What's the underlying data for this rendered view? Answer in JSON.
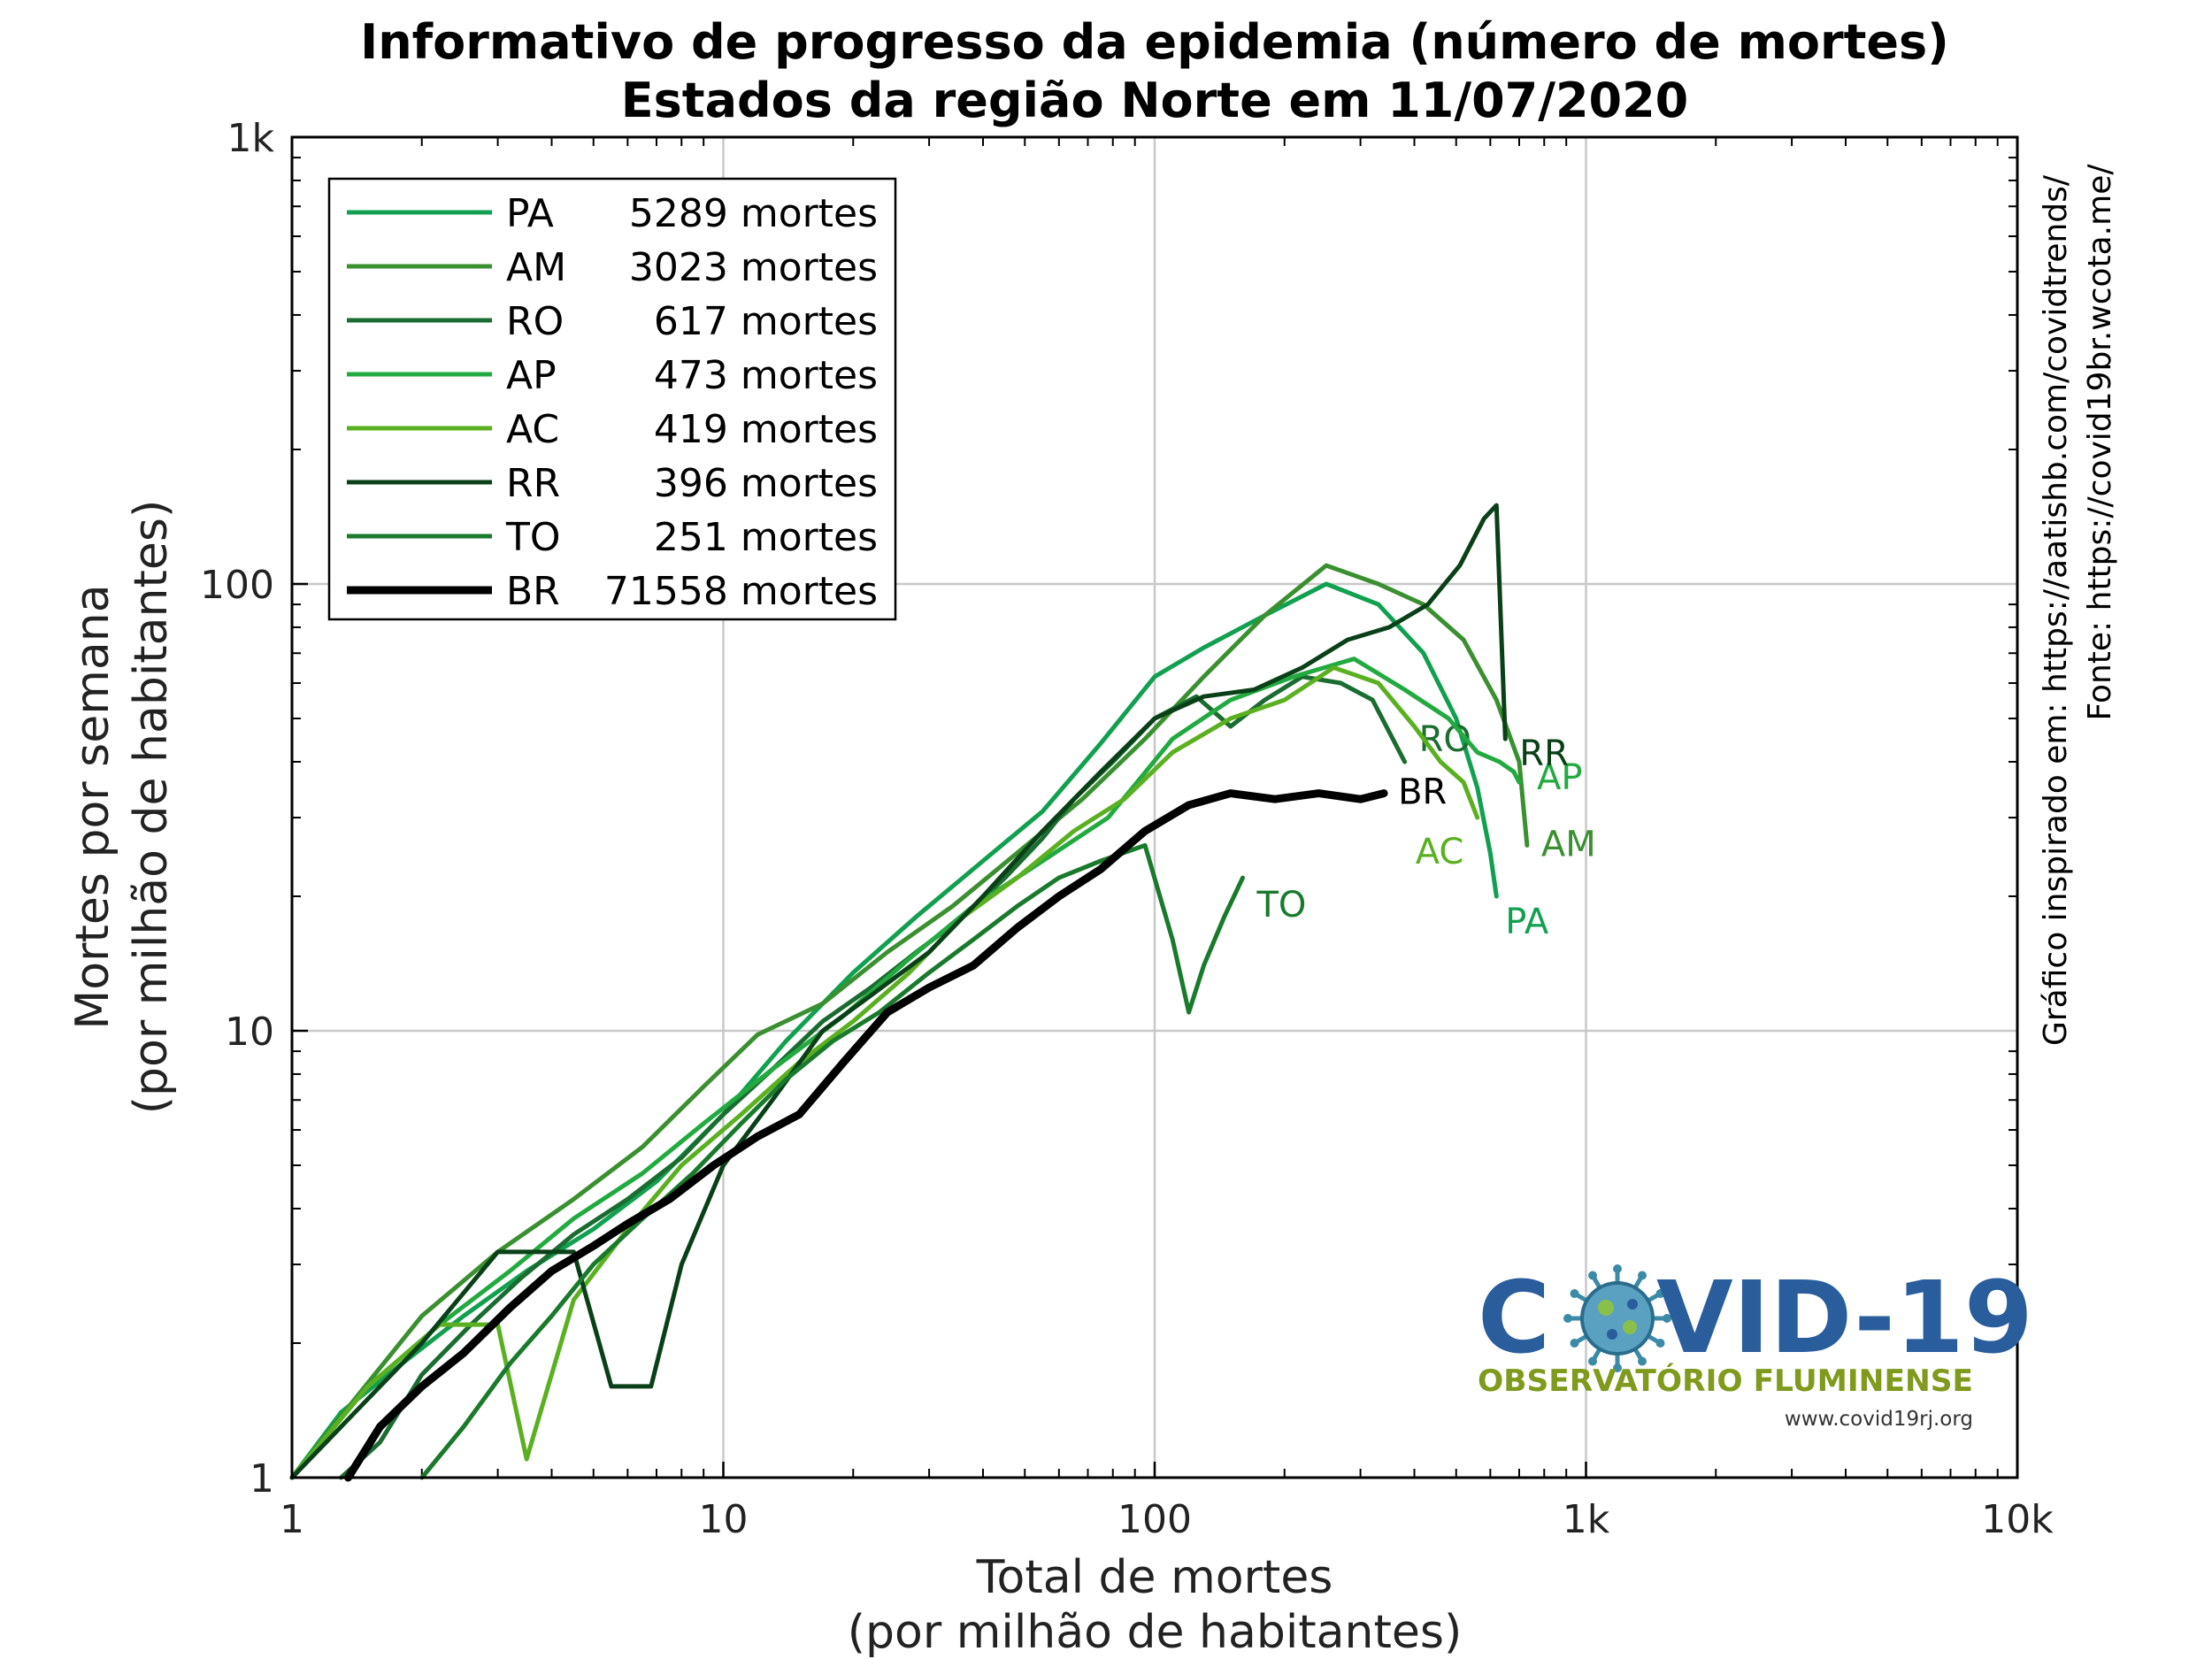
{
  "chart_data": {
    "type": "line",
    "title": "Informativo de progresso da epidemia (número de mortes)",
    "subtitle": "Estados da região Norte em 11/07/2020",
    "xlabel": "Total de mortes",
    "xlabel2": "(por milhão de habitantes)",
    "ylabel": "Mortes por semana",
    "ylabel2": "(por milhão de habitantes)",
    "xscale": "log",
    "yscale": "log",
    "xlim": [
      1,
      10000
    ],
    "ylim": [
      1,
      1000
    ],
    "x_ticks": [
      {
        "v": 1,
        "label": "1"
      },
      {
        "v": 10,
        "label": "10"
      },
      {
        "v": 100,
        "label": "100"
      },
      {
        "v": 1000,
        "label": "1k"
      },
      {
        "v": 10000,
        "label": "10k"
      }
    ],
    "y_ticks": [
      {
        "v": 1,
        "label": "1"
      },
      {
        "v": 10,
        "label": "10"
      },
      {
        "v": 100,
        "label": "100"
      },
      {
        "v": 1000,
        "label": "1k"
      }
    ],
    "grid": true,
    "legend_position": "top-left",
    "series": [
      {
        "name": "PA",
        "deaths_label": "5289 mortes",
        "color": "#11a050",
        "end_label": "PA",
        "x": [
          1.0,
          1.3,
          1.8,
          2.5,
          3.5,
          5,
          7,
          10,
          14,
          20,
          28,
          40,
          55,
          75,
          100,
          130,
          180,
          250,
          330,
          420,
          500,
          560,
          600,
          620
        ],
        "y": [
          1.0,
          1.4,
          1.8,
          2.3,
          2.9,
          3.6,
          4.6,
          6.5,
          9.5,
          13.5,
          18,
          24,
          31,
          44,
          62,
          72,
          85,
          100,
          90,
          70,
          50,
          35,
          25,
          20
        ]
      },
      {
        "name": "AM",
        "deaths_label": "3023 mortes",
        "color": "#3a9030",
        "end_label": "AM",
        "x": [
          1.0,
          1.4,
          2,
          3,
          4.5,
          6.5,
          9,
          12,
          17,
          24,
          34,
          48,
          68,
          95,
          130,
          180,
          250,
          330,
          420,
          520,
          620,
          700,
          730
        ],
        "y": [
          1.0,
          1.5,
          2.3,
          3.2,
          4.2,
          5.5,
          7.5,
          9.8,
          11.5,
          15,
          19,
          25,
          33,
          45,
          62,
          85,
          110,
          100,
          90,
          75,
          55,
          40,
          26
        ]
      },
      {
        "name": "RO",
        "deaths_label": "617 mortes",
        "color": "#1a6c30",
        "end_label": "RO",
        "x": [
          1.3,
          1.6,
          2,
          2.6,
          3.4,
          4.5,
          6,
          8,
          10,
          13,
          17,
          22,
          28,
          36,
          45,
          55,
          65,
          80,
          100,
          125,
          150,
          180,
          220,
          270,
          320,
          380
        ],
        "y": [
          1.0,
          1.2,
          1.7,
          2.2,
          2.8,
          3.5,
          4.2,
          5.2,
          6.5,
          8.2,
          10.5,
          12.5,
          15,
          18,
          22,
          27,
          33,
          40,
          50,
          56,
          48,
          55,
          62,
          60,
          55,
          40
        ]
      },
      {
        "name": "AP",
        "deaths_label": "473 mortes",
        "color": "#22aa40",
        "end_label": "AP",
        "x": [
          1.0,
          1.5,
          2.2,
          3.2,
          4.5,
          6.5,
          9,
          13,
          19,
          27,
          38,
          55,
          78,
          110,
          150,
          210,
          290,
          380,
          480,
          560,
          630,
          680,
          700
        ],
        "y": [
          1.0,
          1.6,
          2.2,
          2.9,
          3.8,
          4.8,
          6.2,
          8.2,
          10.8,
          14.5,
          19,
          24,
          30,
          45,
          55,
          62,
          68,
          58,
          50,
          42,
          40,
          38,
          36
        ]
      },
      {
        "name": "AC",
        "deaths_label": "419 mortes",
        "color": "#5ab020",
        "end_label": "AC",
        "x": [
          1.0,
          1.5,
          2.2,
          3,
          3.5,
          4.5,
          6,
          8,
          11,
          15,
          20,
          27,
          36,
          48,
          65,
          85,
          110,
          150,
          200,
          260,
          330,
          400,
          460,
          520,
          560
        ],
        "y": [
          1.0,
          1.6,
          2.2,
          2.2,
          1.1,
          2.5,
          3.6,
          5.0,
          6.5,
          8.5,
          10.5,
          13.5,
          18,
          22,
          28,
          33,
          42,
          50,
          55,
          65,
          60,
          48,
          40,
          36,
          30
        ]
      },
      {
        "name": "RR",
        "deaths_label": "396 mortes",
        "color": "#0a4018",
        "end_label": "RR",
        "x": [
          1.0,
          1.4,
          2,
          3,
          4.5,
          5.5,
          6.8,
          8,
          10,
          13,
          17,
          22,
          30,
          40,
          55,
          75,
          100,
          130,
          170,
          220,
          280,
          350,
          430,
          510,
          580,
          620,
          650
        ],
        "y": [
          1.0,
          1.4,
          2.0,
          3.2,
          3.2,
          1.6,
          1.6,
          3.0,
          5.0,
          7.0,
          10.0,
          12.0,
          15.0,
          20.0,
          28,
          38,
          50,
          56,
          58,
          65,
          75,
          80,
          90,
          110,
          140,
          150,
          45
        ]
      },
      {
        "name": "TO",
        "deaths_label": "251 mortes",
        "color": "#197a2c",
        "end_label": "TO",
        "x": [
          2.0,
          2.5,
          3.2,
          4,
          5,
          6.5,
          8.5,
          11,
          14,
          18,
          23,
          30,
          38,
          48,
          60,
          75,
          95,
          110,
          120,
          130,
          145,
          160
        ],
        "y": [
          1.0,
          1.3,
          1.8,
          2.3,
          3.0,
          3.8,
          4.8,
          6.2,
          7.8,
          9.5,
          11,
          13.5,
          16,
          19,
          22,
          24,
          26,
          16,
          11,
          14,
          18,
          22
        ]
      },
      {
        "name": "BR",
        "deaths_label": "71558 mortes",
        "color": "#000000",
        "end_label": "BR",
        "bold": true,
        "x": [
          1.35,
          1.6,
          2,
          2.5,
          3.2,
          4,
          5,
          6,
          7.5,
          9.5,
          12,
          15,
          19,
          24,
          30,
          38,
          48,
          60,
          75,
          95,
          120,
          150,
          190,
          240,
          300,
          340
        ],
        "y": [
          1.0,
          1.3,
          1.6,
          1.9,
          2.4,
          2.9,
          3.3,
          3.7,
          4.2,
          5.0,
          5.8,
          6.5,
          8.5,
          11,
          12.5,
          14,
          17,
          20,
          23,
          28,
          32,
          34,
          33,
          34,
          33,
          34
        ]
      }
    ]
  },
  "source_notes": [
    "Gráfico inspirado em: https://aatishb.com/covidtrends/",
    "Fonte: https://covid19br.wcota.me/"
  ],
  "logo": {
    "main_left": "C",
    "main_right": "VID-19",
    "subtitle": "OBSERVATÓRIO FLUMINENSE",
    "url": "www.covid19rj.org",
    "colors": {
      "blue": "#2a5d9c",
      "olive": "#7f9a1c"
    },
    "icon": "virus-icon"
  }
}
